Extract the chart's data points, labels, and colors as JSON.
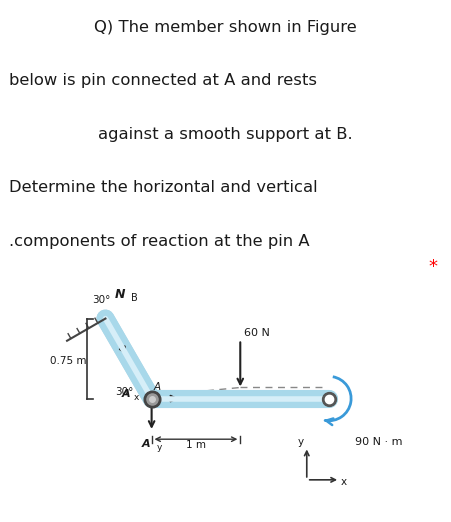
{
  "bg_color": "#ffffff",
  "fig_bg_color": "#f5f0d8",
  "question_text_lines": [
    "Q) The member shown in Figure",
    "below is pin connected at A and rests",
    "against a smooth support at B.",
    "Determine the horizontal and vertical",
    ".components of reaction at the pin A"
  ],
  "star_text": "*",
  "label_NB": "N",
  "label_NB_sub": "B",
  "label_60N": "60 N",
  "label_90Nm": "90 N · m",
  "label_Ax": "A",
  "label_Ax_sub": "x",
  "label_Ay": "A",
  "label_Ay_sub": "y",
  "label_A": "A",
  "label_075m": "0.75 m",
  "label_1m": "1 m",
  "label_x": "x",
  "label_y": "y",
  "angle_30_upper": "30°",
  "angle_30_lower": "30°",
  "member_color_fill": "#a8d8ea",
  "member_color_edge": "#6ab0cc",
  "pin_outer": "#777777",
  "pin_inner": "#cccccc",
  "arrow_color": "#222222",
  "text_color": "#1a1a1a",
  "dashed_color": "#888888",
  "moment_arrow_color": "#3a9ad9"
}
